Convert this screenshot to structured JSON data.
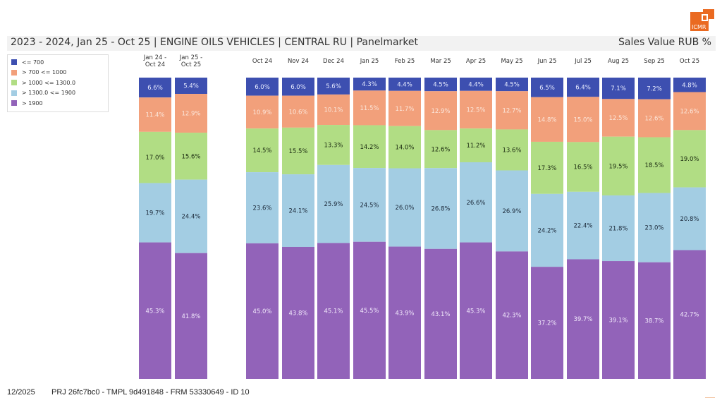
{
  "header": {
    "title": "2023 - 2024, Jan 25 - Oct 25 | ENGINE OILS VEHICLES | CENTRAL RU | Panelmarket",
    "measure": "Sales Value RUB %",
    "logo_text": "ICMR",
    "logo_icon": "icmr-logo-icon"
  },
  "footer": {
    "date": "12/2025",
    "id": "PRJ 26fc7bc0 - TMPL 9d491848 - FRM 53330649 - ID 10"
  },
  "chart_data": {
    "type": "bar",
    "stacked": true,
    "normalized_percent": true,
    "title": "2023 - 2024, Jan 25 - Oct 25 | ENGINE OILS VEHICLES | CENTRAL RU | Panelmarket",
    "subtitle": "Sales Value RUB %",
    "xlabel": "",
    "ylabel": "",
    "ylim": [
      0,
      100
    ],
    "grid": false,
    "legend_position": "top-left",
    "groups": [
      {
        "name": "summary",
        "categories": [
          0,
          1
        ]
      },
      {
        "name": "monthly",
        "categories": [
          2,
          3,
          4,
          5,
          6,
          7,
          8,
          9,
          10,
          11,
          12,
          13,
          14
        ]
      }
    ],
    "categories": [
      "Jan 24 - Oct 24",
      "Jan 25 - Oct 25",
      "Oct 24",
      "Nov 24",
      "Dec 24",
      "Jan 25",
      "Feb 25",
      "Mar 25",
      "Apr 25",
      "May 25",
      "Jun 25",
      "Jul 25",
      "Aug 25",
      "Sep 25",
      "Oct 25"
    ],
    "series": [
      {
        "name": "<= 700",
        "color": "#3d4fb0",
        "label_color": "#e8ecff",
        "values": [
          6.6,
          5.4,
          6.0,
          6.0,
          5.6,
          4.3,
          4.4,
          4.5,
          4.4,
          4.5,
          6.5,
          6.4,
          7.1,
          7.2,
          4.8
        ]
      },
      {
        "name": "> 700 <= 1000",
        "color": "#f2a07b",
        "label_color": "#fbe6da",
        "values": [
          11.4,
          12.9,
          10.9,
          10.6,
          10.1,
          11.5,
          11.7,
          12.9,
          12.5,
          12.7,
          14.8,
          15.0,
          12.5,
          12.6,
          12.6
        ]
      },
      {
        "name": "> 1000 <= 1300.0",
        "color": "#b1dd84",
        "label_color": "#1a2a10",
        "values": [
          17.0,
          15.6,
          14.5,
          15.5,
          13.3,
          14.2,
          14.0,
          12.6,
          11.2,
          13.6,
          17.3,
          16.5,
          19.5,
          18.5,
          19.0
        ]
      },
      {
        "name": "> 1300.0 <= 1900",
        "color": "#a3cde3",
        "label_color": "#1c2a3a",
        "values": [
          19.7,
          24.4,
          23.6,
          24.1,
          25.9,
          24.5,
          26.0,
          26.8,
          26.6,
          26.9,
          24.2,
          22.4,
          21.8,
          23.0,
          20.8
        ]
      },
      {
        "name": "> 1900",
        "color": "#9263b9",
        "label_color": "#f1e8fb",
        "values": [
          45.3,
          41.8,
          45.0,
          43.8,
          45.1,
          45.5,
          43.9,
          43.1,
          45.3,
          42.3,
          37.2,
          39.7,
          39.1,
          38.7,
          42.7
        ]
      }
    ]
  }
}
